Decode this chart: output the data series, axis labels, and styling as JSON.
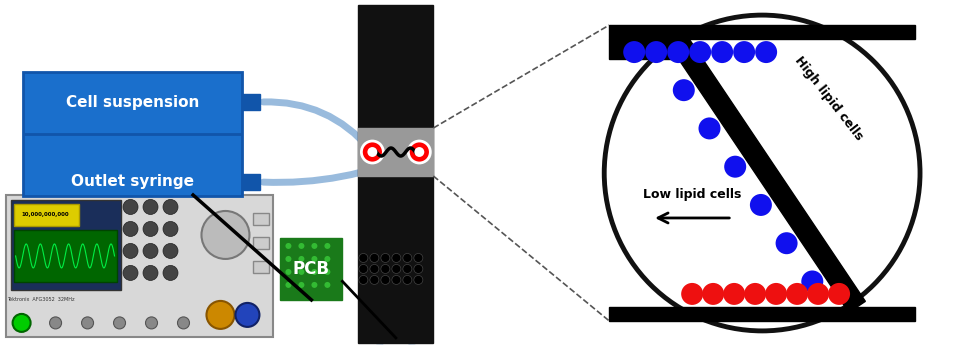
{
  "bg_color": "#ffffff",
  "cell_suspension_label": "Cell suspension",
  "outlet_syringe_label": "Outlet syringe",
  "pcb_label": "PCB",
  "high_lipid_label": "High lipid cells",
  "low_lipid_label": "Low lipid cells",
  "blue_cell_color": "#1010ee",
  "red_cell_color": "#ee1010",
  "box_blue_dark": "#1155aa",
  "box_blue_main": "#1a6fcc",
  "tube_color": "#99bbdd",
  "black_platform": "#111111",
  "gray_channel": "#999999",
  "pcb_green": "#1a7a1a",
  "circle_border": "#111111",
  "dashed_color": "#555555",
  "fg_body": "#d8d8d8",
  "fg_screen_bg": "#1a2e5a",
  "fg_yellow": "#ddcc00",
  "fg_green_trace": "#006600"
}
